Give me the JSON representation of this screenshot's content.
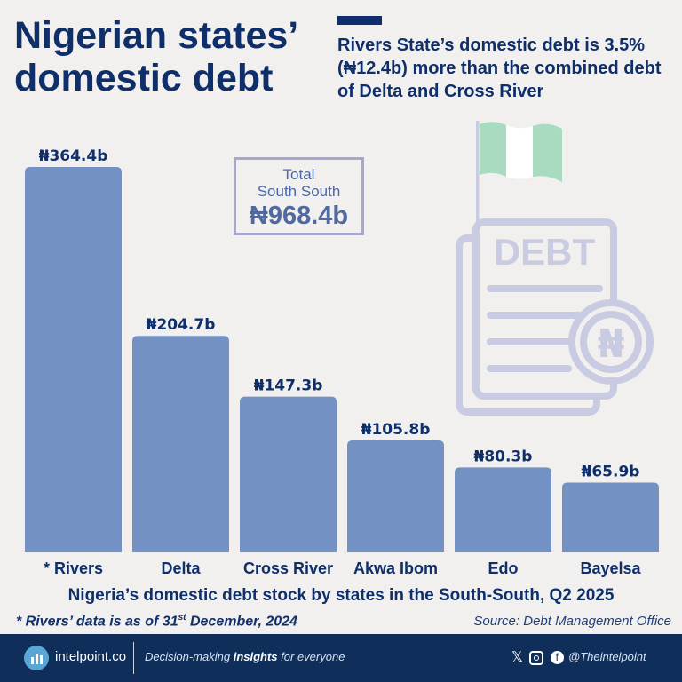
{
  "header": {
    "title": "Nigerian states’ domestic debt",
    "subtitle": "Rivers State’s domestic debt is 3.5% (₦12.4b) more than the combined debt of Delta and Cross River"
  },
  "total": {
    "line1": "Total",
    "line2": "South South",
    "value": "₦968.4b"
  },
  "illustration": {
    "document_text": "DEBT",
    "coin_symbol": "₦"
  },
  "chart_data": {
    "type": "bar",
    "categories": [
      "* Rivers",
      "Delta",
      "Cross River",
      "Akwa Ibom",
      "Edo",
      "Bayelsa"
    ],
    "values": [
      364.4,
      204.7,
      147.3,
      105.8,
      80.3,
      65.9
    ],
    "value_labels": [
      "₦364.4b",
      "₦204.7b",
      "₦147.3b",
      "₦105.8b",
      "₦80.3b",
      "₦65.9b"
    ],
    "ylim": [
      0,
      364.4
    ],
    "grid": false,
    "bar_color": "#7392c3",
    "title": "Nigeria’s domestic debt stock by states in the South-South, Q2 2025"
  },
  "footnote": {
    "prefix": "* Rivers’ data is as of 31",
    "sup": "st",
    "suffix": " December, 2024"
  },
  "source": "Source: Debt Management Office",
  "footer": {
    "brand": "intelpoint.co",
    "tagline_pre": "Decision-making ",
    "tagline_bold": "insights",
    "tagline_post": " for everyone",
    "x_glyph": "𝕏",
    "facebook_glyph": "f",
    "handle": "@Theintelpoint"
  },
  "colors": {
    "navy": "#0f2f6a",
    "bar": "#7392c3",
    "background": "#f1f0ee",
    "illustration": "#c9cbe2",
    "flag_green": "#a8dbbf",
    "footer": "#0f2f5a"
  }
}
